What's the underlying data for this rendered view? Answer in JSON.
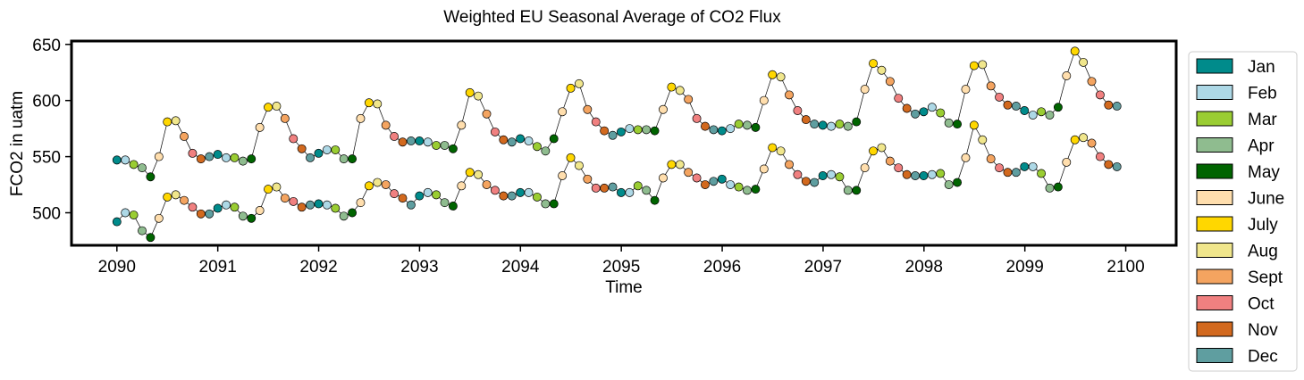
{
  "chart_data": {
    "type": "line",
    "title": "Weighted EU Seasonal Average of CO2 Flux",
    "xlabel": "Time",
    "ylabel": "FCO2 in uatm",
    "xlim": [
      2089.55,
      2100.5
    ],
    "ylim": [
      471,
      653
    ],
    "xticks": [
      2090,
      2091,
      2092,
      2093,
      2094,
      2095,
      2096,
      2097,
      2098,
      2099,
      2100
    ],
    "yticks": [
      500,
      550,
      600,
      650
    ],
    "grid": false,
    "legend_position": "outside-right",
    "months": [
      "Jan",
      "Feb",
      "Mar",
      "Apr",
      "May",
      "June",
      "July",
      "Aug",
      "Sept",
      "Oct",
      "Nov",
      "Dec"
    ],
    "month_colors": [
      "#008b8b",
      "#add8e6",
      "#9acd32",
      "#8fbc8f",
      "#006400",
      "#ffdead",
      "#ffd700",
      "#f0e68c",
      "#f4a460",
      "#f08080",
      "#d2691e",
      "#5f9ea0"
    ],
    "x_start": 2090.0,
    "x_step": 0.0833,
    "series": [
      {
        "values": [
          547,
          547,
          543,
          540,
          532,
          550,
          581,
          582,
          568,
          553,
          548,
          550,
          552,
          549,
          549,
          546,
          548,
          576,
          594,
          595,
          584,
          566,
          557,
          549,
          553,
          556,
          556,
          548,
          548,
          584,
          598,
          597,
          578,
          568,
          563,
          564,
          564,
          563,
          560,
          560,
          557,
          578,
          607,
          604,
          588,
          572,
          565,
          563,
          566,
          564,
          559,
          555,
          566,
          590,
          611,
          615,
          592,
          581,
          573,
          569,
          572,
          575,
          574,
          574,
          573,
          592,
          612,
          609,
          601,
          584,
          577,
          574,
          573,
          575,
          579,
          578,
          576,
          600,
          623,
          621,
          605,
          591,
          583,
          579,
          578,
          577,
          579,
          577,
          581,
          610,
          633,
          627,
          617,
          602,
          593,
          588,
          590,
          594,
          589,
          580,
          579,
          610,
          631,
          632,
          613,
          603,
          596,
          595,
          591,
          587,
          590,
          587,
          594,
          622,
          644,
          634,
          617,
          605,
          596,
          595
        ]
      },
      {
        "values": [
          492,
          500,
          498,
          484,
          478,
          495,
          514,
          516,
          511,
          505,
          499,
          499,
          504,
          507,
          505,
          497,
          495,
          502,
          521,
          523,
          513,
          510,
          505,
          507,
          508,
          507,
          504,
          497,
          500,
          509,
          524,
          527,
          525,
          517,
          513,
          507,
          515,
          518,
          516,
          509,
          506,
          524,
          536,
          534,
          525,
          520,
          515,
          515,
          518,
          518,
          514,
          508,
          508,
          533,
          549,
          542,
          530,
          522,
          522,
          523,
          518,
          518,
          524,
          520,
          511,
          531,
          543,
          543,
          536,
          531,
          525,
          528,
          530,
          525,
          523,
          520,
          521,
          539,
          558,
          555,
          543,
          534,
          528,
          527,
          533,
          534,
          532,
          520,
          520,
          540,
          555,
          558,
          546,
          540,
          534,
          533,
          533,
          534,
          535,
          525,
          527,
          549,
          578,
          565,
          548,
          540,
          536,
          536,
          541,
          541,
          535,
          522,
          523,
          545,
          565,
          567,
          562,
          550,
          543,
          541
        ]
      }
    ]
  },
  "legend": {
    "items": [
      "Jan",
      "Feb",
      "Mar",
      "Apr",
      "May",
      "June",
      "July",
      "Aug",
      "Sept",
      "Oct",
      "Nov",
      "Dec"
    ]
  }
}
